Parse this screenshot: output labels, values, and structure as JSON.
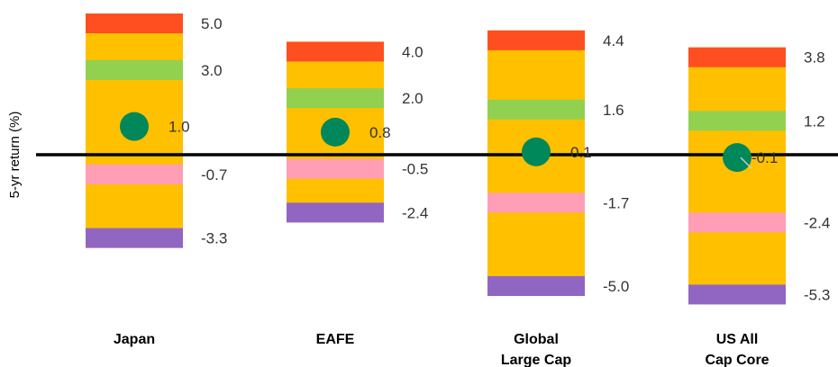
{
  "chart_data": {
    "type": "range",
    "ylabel": "5-yr return (%)",
    "categories": [
      {
        "label_lines": [
          "Japan"
        ],
        "max": 5.0,
        "upper": 3.0,
        "mid": 1.0,
        "lower": -0.7,
        "min": -3.3
      },
      {
        "label_lines": [
          "EAFE"
        ],
        "max": 4.0,
        "upper": 2.0,
        "mid": 0.8,
        "lower": -0.5,
        "min": -2.4
      },
      {
        "label_lines": [
          "Global",
          "Large Cap"
        ],
        "max": 4.4,
        "upper": 1.6,
        "mid": 0.1,
        "lower": -1.7,
        "min": -5.0
      },
      {
        "label_lines": [
          "US All",
          "Cap Core"
        ],
        "max": 3.8,
        "upper": 1.2,
        "mid": -0.1,
        "lower": -2.4,
        "min": -5.3
      }
    ],
    "value_labels": [
      {
        "max": "5.0",
        "upper": "3.0",
        "mid": "1.0",
        "lower": "-0.7",
        "min": "-3.3"
      },
      {
        "max": "4.0",
        "upper": "2.0",
        "mid": "0.8",
        "lower": "-0.5",
        "min": "-2.4"
      },
      {
        "max": "4.4",
        "upper": "1.6",
        "mid": "0.1",
        "lower": "-1.7",
        "min": "-5.0"
      },
      {
        "max": "3.8",
        "upper": "1.2",
        "mid": "-0.1",
        "lower": "-2.4",
        "min": "-5.3"
      }
    ],
    "colors": {
      "range_bar": "#FFC000",
      "max_marker": "#FF4E1F",
      "upper_marker": "#92D050",
      "mid_marker": "#00875A",
      "lower_marker": "#FF9EB5",
      "min_marker": "#9166C2",
      "zero_line": "#000000"
    },
    "grid": false,
    "legend": "none"
  }
}
